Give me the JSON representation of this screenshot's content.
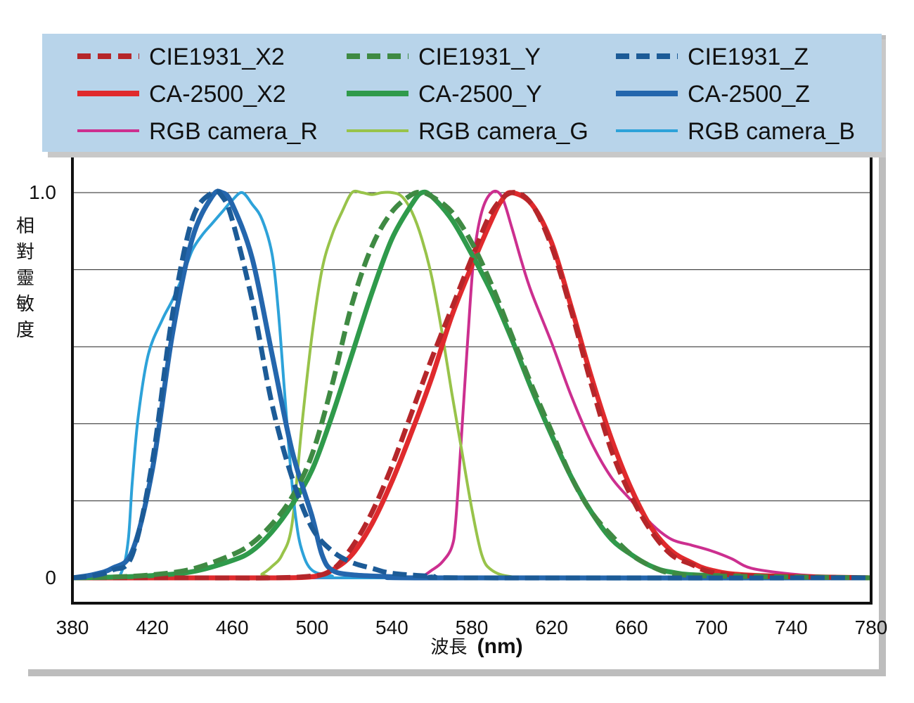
{
  "chart_data": {
    "type": "line",
    "xlabel_cjk": "波長",
    "xlabel_unit": "(nm)",
    "ylabel": "相對靈敏度",
    "xlim": [
      380,
      780
    ],
    "ylim": [
      0,
      1.0
    ],
    "x_ticks": [
      "380",
      "420",
      "460",
      "500",
      "540",
      "580",
      "620",
      "660",
      "700",
      "740",
      "780"
    ],
    "y_ticks": [
      "0",
      "1.0"
    ],
    "grid": "horizontal",
    "legend_position": "top",
    "series": [
      {
        "name": "CIE1931_X2",
        "color": "#b5262a",
        "style": "dashed",
        "width": 7,
        "points": [
          [
            380,
            0
          ],
          [
            440,
            0
          ],
          [
            480,
            0
          ],
          [
            500,
            0.005
          ],
          [
            510,
            0.02
          ],
          [
            520,
            0.08
          ],
          [
            530,
            0.17
          ],
          [
            540,
            0.29
          ],
          [
            550,
            0.43
          ],
          [
            560,
            0.57
          ],
          [
            570,
            0.7
          ],
          [
            580,
            0.83
          ],
          [
            590,
            0.95
          ],
          [
            600,
            1.0
          ],
          [
            610,
            0.97
          ],
          [
            620,
            0.86
          ],
          [
            630,
            0.69
          ],
          [
            640,
            0.5
          ],
          [
            650,
            0.33
          ],
          [
            660,
            0.21
          ],
          [
            670,
            0.12
          ],
          [
            680,
            0.06
          ],
          [
            690,
            0.035
          ],
          [
            700,
            0.015
          ],
          [
            720,
            0.005
          ],
          [
            780,
            0
          ]
        ]
      },
      {
        "name": "CIE1931_Y",
        "color": "#3f8a43",
        "style": "dashed",
        "width": 7,
        "points": [
          [
            380,
            0
          ],
          [
            400,
            0.002
          ],
          [
            420,
            0.008
          ],
          [
            440,
            0.023
          ],
          [
            460,
            0.06
          ],
          [
            470,
            0.09
          ],
          [
            480,
            0.14
          ],
          [
            490,
            0.21
          ],
          [
            500,
            0.32
          ],
          [
            510,
            0.5
          ],
          [
            520,
            0.71
          ],
          [
            530,
            0.86
          ],
          [
            540,
            0.95
          ],
          [
            550,
            0.995
          ],
          [
            555,
            1.0
          ],
          [
            560,
            0.99
          ],
          [
            570,
            0.95
          ],
          [
            580,
            0.87
          ],
          [
            590,
            0.76
          ],
          [
            600,
            0.63
          ],
          [
            610,
            0.5
          ],
          [
            620,
            0.38
          ],
          [
            630,
            0.26
          ],
          [
            640,
            0.17
          ],
          [
            650,
            0.11
          ],
          [
            660,
            0.06
          ],
          [
            670,
            0.03
          ],
          [
            680,
            0.012
          ],
          [
            700,
            0.005
          ],
          [
            780,
            0
          ]
        ]
      },
      {
        "name": "CIE1931_Z",
        "color": "#1c5b97",
        "style": "dashed",
        "width": 7,
        "points": [
          [
            380,
            0
          ],
          [
            390,
            0.005
          ],
          [
            400,
            0.02
          ],
          [
            410,
            0.06
          ],
          [
            420,
            0.3
          ],
          [
            430,
            0.68
          ],
          [
            440,
            0.93
          ],
          [
            450,
            1.0
          ],
          [
            455,
            0.99
          ],
          [
            460,
            0.93
          ],
          [
            470,
            0.72
          ],
          [
            480,
            0.45
          ],
          [
            490,
            0.26
          ],
          [
            500,
            0.13
          ],
          [
            510,
            0.07
          ],
          [
            520,
            0.04
          ],
          [
            530,
            0.025
          ],
          [
            540,
            0.012
          ],
          [
            560,
            0.004
          ],
          [
            580,
            0
          ],
          [
            780,
            0
          ]
        ]
      },
      {
        "name": "CA-2500_X2",
        "color": "#e02a2d",
        "style": "solid",
        "width": 7,
        "points": [
          [
            380,
            0
          ],
          [
            440,
            0
          ],
          [
            480,
            0
          ],
          [
            500,
            0.003
          ],
          [
            510,
            0.02
          ],
          [
            520,
            0.06
          ],
          [
            530,
            0.14
          ],
          [
            540,
            0.25
          ],
          [
            550,
            0.38
          ],
          [
            560,
            0.52
          ],
          [
            570,
            0.68
          ],
          [
            580,
            0.81
          ],
          [
            590,
            0.93
          ],
          [
            595,
            0.98
          ],
          [
            600,
            1.0
          ],
          [
            610,
            0.97
          ],
          [
            620,
            0.87
          ],
          [
            630,
            0.7
          ],
          [
            640,
            0.52
          ],
          [
            650,
            0.36
          ],
          [
            660,
            0.23
          ],
          [
            670,
            0.13
          ],
          [
            680,
            0.07
          ],
          [
            690,
            0.04
          ],
          [
            700,
            0.02
          ],
          [
            720,
            0.007
          ],
          [
            780,
            0
          ]
        ]
      },
      {
        "name": "CA-2500_Y",
        "color": "#2f9a4b",
        "style": "solid",
        "width": 7,
        "points": [
          [
            380,
            0
          ],
          [
            400,
            0.002
          ],
          [
            420,
            0.006
          ],
          [
            440,
            0.016
          ],
          [
            460,
            0.045
          ],
          [
            470,
            0.07
          ],
          [
            480,
            0.12
          ],
          [
            490,
            0.19
          ],
          [
            500,
            0.28
          ],
          [
            510,
            0.42
          ],
          [
            520,
            0.58
          ],
          [
            530,
            0.74
          ],
          [
            540,
            0.88
          ],
          [
            550,
            0.97
          ],
          [
            555,
            1.0
          ],
          [
            560,
            0.99
          ],
          [
            570,
            0.93
          ],
          [
            580,
            0.84
          ],
          [
            590,
            0.74
          ],
          [
            600,
            0.62
          ],
          [
            610,
            0.49
          ],
          [
            620,
            0.37
          ],
          [
            630,
            0.26
          ],
          [
            640,
            0.17
          ],
          [
            650,
            0.1
          ],
          [
            660,
            0.06
          ],
          [
            670,
            0.03
          ],
          [
            680,
            0.015
          ],
          [
            700,
            0.006
          ],
          [
            780,
            0
          ]
        ]
      },
      {
        "name": "CA-2500_Z",
        "color": "#2466ad",
        "style": "solid",
        "width": 7,
        "points": [
          [
            380,
            0
          ],
          [
            390,
            0.008
          ],
          [
            400,
            0.025
          ],
          [
            410,
            0.07
          ],
          [
            420,
            0.28
          ],
          [
            430,
            0.63
          ],
          [
            440,
            0.88
          ],
          [
            450,
            0.99
          ],
          [
            455,
            1.0
          ],
          [
            460,
            0.97
          ],
          [
            470,
            0.83
          ],
          [
            480,
            0.58
          ],
          [
            490,
            0.33
          ],
          [
            500,
            0.16
          ],
          [
            505,
            0.06
          ],
          [
            510,
            0.02
          ],
          [
            520,
            0.008
          ],
          [
            540,
            0.003
          ],
          [
            560,
            0
          ],
          [
            780,
            0
          ]
        ]
      },
      {
        "name": "RGB camera_R",
        "color": "#cc2f8f",
        "style": "solid",
        "width": 4,
        "points": [
          [
            380,
            0
          ],
          [
            500,
            0
          ],
          [
            550,
            0
          ],
          [
            555,
            0.003
          ],
          [
            560,
            0.02
          ],
          [
            565,
            0.04
          ],
          [
            570,
            0.08
          ],
          [
            572,
            0.15
          ],
          [
            575,
            0.38
          ],
          [
            578,
            0.62
          ],
          [
            581,
            0.83
          ],
          [
            585,
            0.95
          ],
          [
            590,
            1.0
          ],
          [
            595,
            0.99
          ],
          [
            600,
            0.91
          ],
          [
            605,
            0.82
          ],
          [
            610,
            0.74
          ],
          [
            620,
            0.61
          ],
          [
            630,
            0.47
          ],
          [
            640,
            0.35
          ],
          [
            650,
            0.26
          ],
          [
            660,
            0.2
          ],
          [
            670,
            0.14
          ],
          [
            680,
            0.1
          ],
          [
            690,
            0.085
          ],
          [
            700,
            0.07
          ],
          [
            710,
            0.05
          ],
          [
            720,
            0.025
          ],
          [
            740,
            0.01
          ],
          [
            760,
            0.003
          ],
          [
            780,
            0
          ]
        ]
      },
      {
        "name": "RGB camera_G",
        "color": "#98c34a",
        "style": "solid",
        "width": 4,
        "points": [
          [
            380,
            0
          ],
          [
            470,
            0
          ],
          [
            475,
            0.01
          ],
          [
            480,
            0.03
          ],
          [
            485,
            0.06
          ],
          [
            490,
            0.14
          ],
          [
            495,
            0.4
          ],
          [
            500,
            0.63
          ],
          [
            505,
            0.8
          ],
          [
            510,
            0.89
          ],
          [
            515,
            0.95
          ],
          [
            520,
            1.0
          ],
          [
            525,
            1.0
          ],
          [
            530,
            0.995
          ],
          [
            535,
            1.0
          ],
          [
            540,
            1.0
          ],
          [
            545,
            0.99
          ],
          [
            550,
            0.95
          ],
          [
            555,
            0.88
          ],
          [
            560,
            0.78
          ],
          [
            565,
            0.64
          ],
          [
            570,
            0.48
          ],
          [
            575,
            0.33
          ],
          [
            580,
            0.18
          ],
          [
            585,
            0.06
          ],
          [
            590,
            0.02
          ],
          [
            600,
            0.003
          ],
          [
            620,
            0
          ],
          [
            780,
            0
          ]
        ]
      },
      {
        "name": "RGB camera_B",
        "color": "#2da2d9",
        "style": "solid",
        "width": 4,
        "points": [
          [
            380,
            0
          ],
          [
            400,
            0
          ],
          [
            405,
            0.02
          ],
          [
            408,
            0.1
          ],
          [
            410,
            0.25
          ],
          [
            413,
            0.42
          ],
          [
            418,
            0.58
          ],
          [
            425,
            0.67
          ],
          [
            430,
            0.72
          ],
          [
            435,
            0.78
          ],
          [
            440,
            0.85
          ],
          [
            445,
            0.89
          ],
          [
            450,
            0.92
          ],
          [
            455,
            0.95
          ],
          [
            460,
            0.98
          ],
          [
            465,
            1.0
          ],
          [
            470,
            0.97
          ],
          [
            475,
            0.93
          ],
          [
            480,
            0.84
          ],
          [
            483,
            0.7
          ],
          [
            486,
            0.5
          ],
          [
            489,
            0.3
          ],
          [
            492,
            0.15
          ],
          [
            495,
            0.07
          ],
          [
            500,
            0.02
          ],
          [
            510,
            0.005
          ],
          [
            520,
            0
          ],
          [
            780,
            0
          ]
        ]
      }
    ]
  }
}
